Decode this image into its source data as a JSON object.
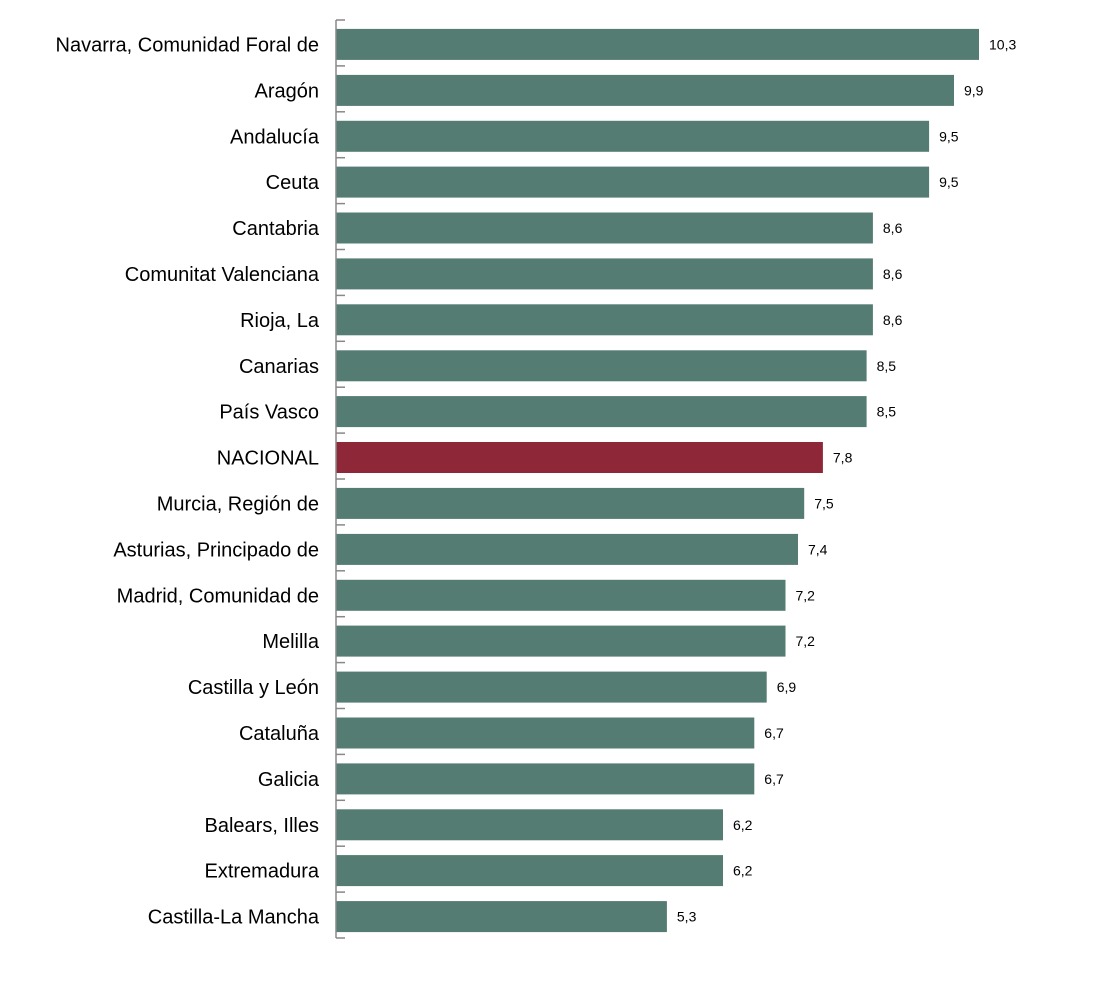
{
  "chart_data": {
    "type": "bar",
    "orientation": "horizontal",
    "categories": [
      "Navarra, Comunidad Foral de",
      "Aragón",
      "Andalucía",
      "Ceuta",
      "Cantabria",
      "Comunitat Valenciana",
      "Rioja, La",
      "Canarias",
      "País Vasco",
      "NACIONAL",
      "Murcia, Región de",
      "Asturias, Principado de",
      "Madrid, Comunidad de",
      "Melilla",
      "Castilla y León",
      "Cataluña",
      "Galicia",
      "Balears, Illes",
      "Extremadura",
      "Castilla-La Mancha"
    ],
    "values": [
      10.3,
      9.9,
      9.5,
      9.5,
      8.6,
      8.6,
      8.6,
      8.5,
      8.5,
      7.8,
      7.5,
      7.4,
      7.2,
      7.2,
      6.9,
      6.7,
      6.7,
      6.2,
      6.2,
      5.3
    ],
    "value_labels": [
      "10,3",
      "9,9",
      "9,5",
      "9,5",
      "8,6",
      "8,6",
      "8,6",
      "8,5",
      "8,5",
      "7,8",
      "7,5",
      "7,4",
      "7,2",
      "7,2",
      "6,9",
      "6,7",
      "6,7",
      "6,2",
      "6,2",
      "5,3"
    ],
    "highlight_category": "NACIONAL",
    "colors": {
      "bar": "#547c73",
      "highlight": "#8e2737"
    },
    "xlim": [
      0,
      10.3
    ],
    "grid": false,
    "title": "",
    "xlabel": "",
    "ylabel": ""
  }
}
